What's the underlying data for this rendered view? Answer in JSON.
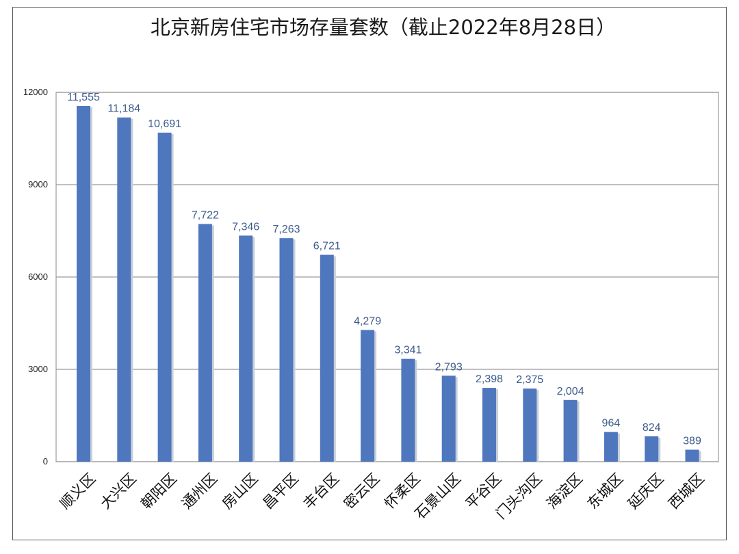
{
  "chart_data": {
    "type": "bar",
    "title": "北京新房住宅市场存量套数（截止2022年8月28日）",
    "xlabel": "",
    "ylabel": "",
    "ylim": [
      0,
      12000
    ],
    "yticks": [
      "0",
      "3000",
      "6000",
      "9000",
      "12000"
    ],
    "grid": true,
    "categories": [
      "顺义区",
      "大兴区",
      "朝阳区",
      "通州区",
      "房山区",
      "昌平区",
      "丰台区",
      "密云区",
      "怀柔区",
      "石景山区",
      "平谷区",
      "门头沟区",
      "海淀区",
      "东城区",
      "延庆区",
      "西城区"
    ],
    "values": [
      11555,
      11184,
      10691,
      7722,
      7346,
      7263,
      6721,
      4279,
      3341,
      2793,
      2398,
      2375,
      2004,
      964,
      824,
      389
    ],
    "value_labels": [
      "11,555",
      "11,184",
      "10,691",
      "7,722",
      "7,346",
      "7,263",
      "6,721",
      "4,279",
      "3,341",
      "2,793",
      "2,398",
      "2,375",
      "2,004",
      "964",
      "824",
      "389"
    ],
    "colors": {
      "bar": "#4f77be",
      "label": "#3b5a8c"
    }
  }
}
